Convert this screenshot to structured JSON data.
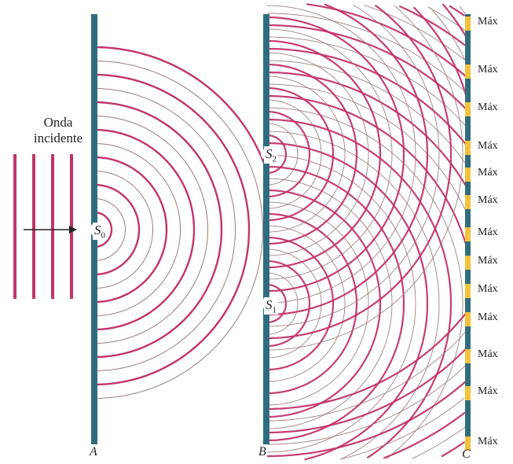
{
  "incident_wave": {
    "line1": "Onda",
    "line2": "incidente"
  },
  "barriers": {
    "a": "A",
    "b": "B",
    "c": "C"
  },
  "sources": {
    "s0": {
      "letter": "S",
      "sub": "0"
    },
    "s1": {
      "letter": "S",
      "sub": "1"
    },
    "s2": {
      "letter": "S",
      "sub": "2"
    }
  },
  "max_labels": [
    "Máx",
    "Máx",
    "Máx",
    "Máx",
    "Máx",
    "Máx",
    "Máx",
    "Máx",
    "Máx",
    "Máx",
    "Máx",
    "Máx",
    "Máx"
  ],
  "colors": {
    "barrier": "#2f6d7e",
    "wave": "#c2346a",
    "thin_wave": "#9c7b7b",
    "bright_fringe": "#f2c23a"
  }
}
